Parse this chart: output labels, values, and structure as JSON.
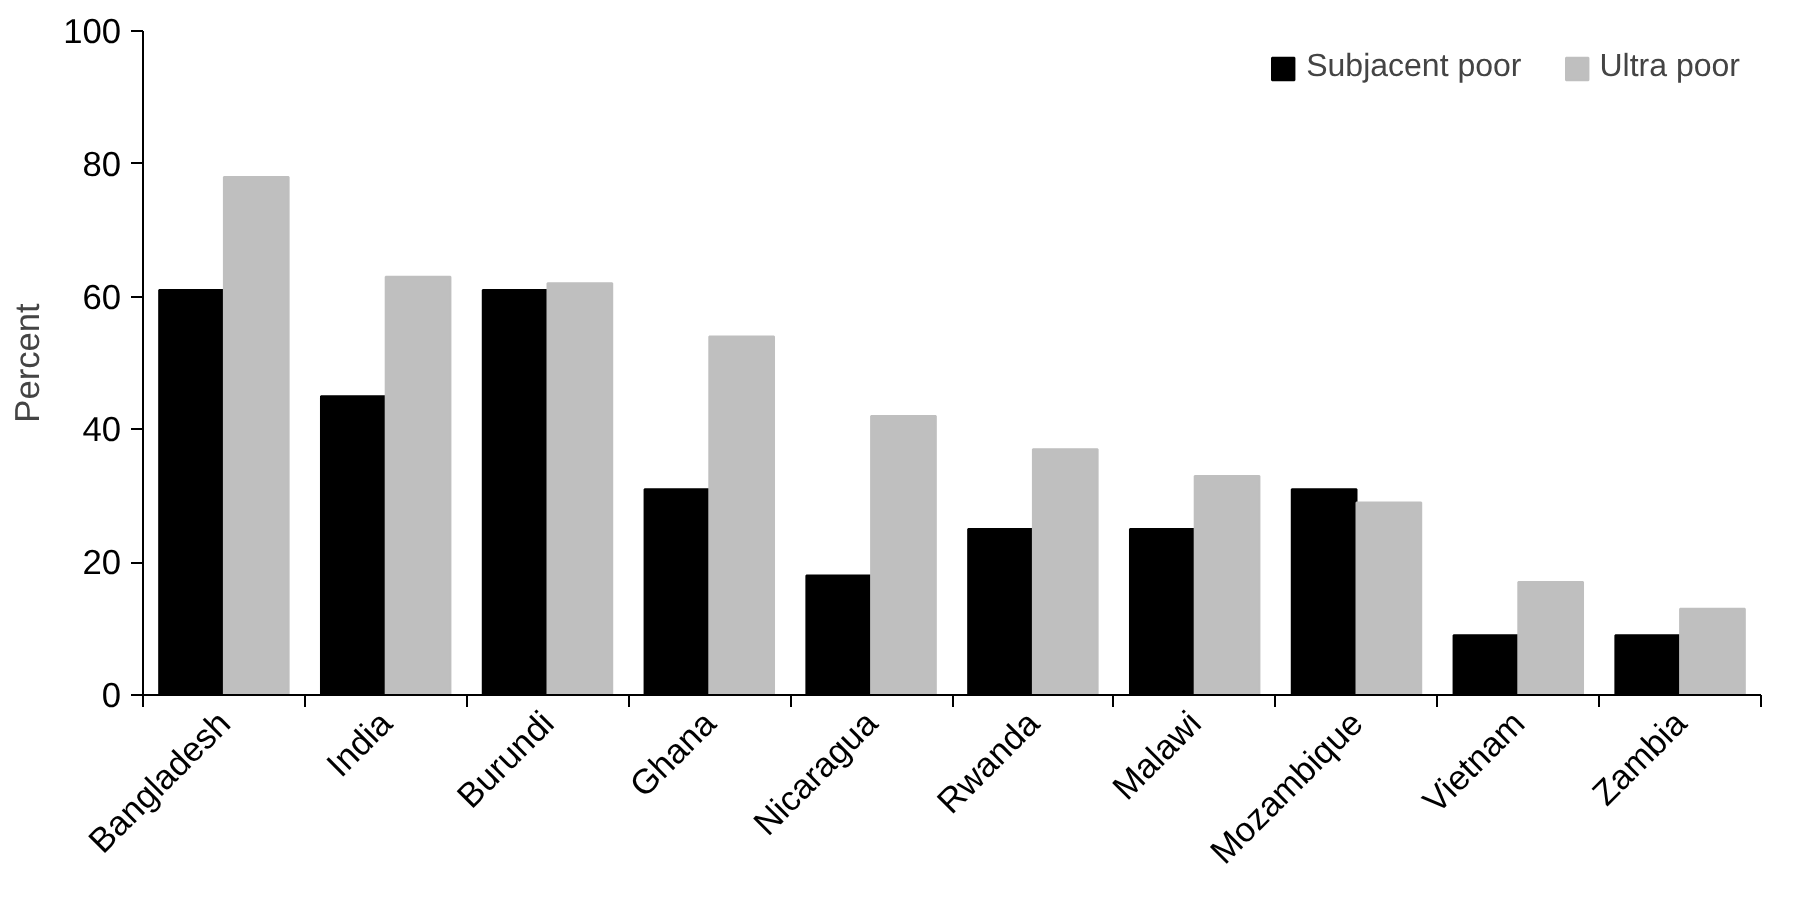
{
  "chart_data": {
    "type": "bar",
    "ylabel": "Percent",
    "categories": [
      "Bangladesh",
      "India",
      "Burundi",
      "Ghana",
      "Nicaragua",
      "Rwanda",
      "Malawi",
      "Mozambique",
      "Vietnam",
      "Zambia"
    ],
    "series": [
      {
        "name": "Subjacent poor",
        "color": "#000000",
        "values": [
          61,
          45,
          61,
          31,
          18,
          25,
          25,
          31,
          9,
          9
        ]
      },
      {
        "name": "Ultra poor",
        "color": "#bfbfbf",
        "values": [
          78,
          63,
          62,
          54,
          42,
          37,
          33,
          29,
          17,
          13
        ]
      }
    ],
    "ylim": [
      0,
      100
    ],
    "yticks": [
      0,
      20,
      40,
      60,
      80,
      100
    ],
    "grid": false,
    "legend": "top right"
  }
}
